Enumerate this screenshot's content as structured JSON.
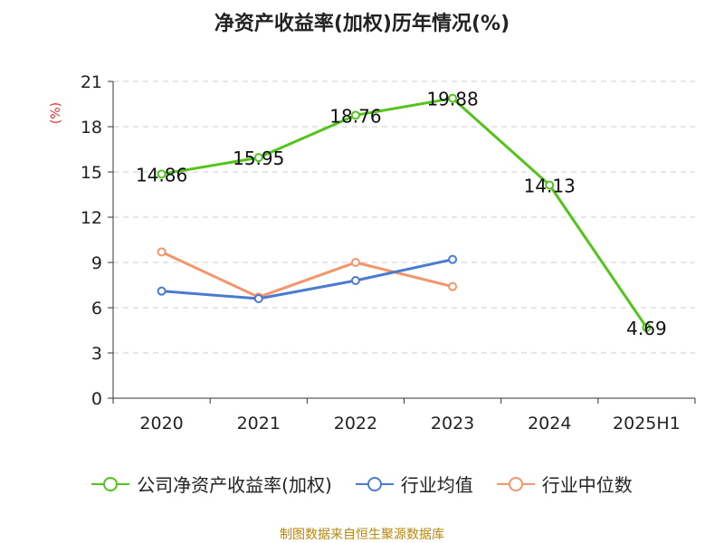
{
  "chart_data": {
    "type": "line",
    "title": "净资产收益率(加权)历年情况(%)",
    "ylabel": "(%)",
    "xlabel": "",
    "categories": [
      "2020",
      "2021",
      "2022",
      "2023",
      "2024",
      "2025H1"
    ],
    "ylim": [
      0,
      21
    ],
    "yticks": [
      0,
      3,
      6,
      9,
      12,
      15,
      18,
      21
    ],
    "grid": true,
    "legend_position": "bottom",
    "series": [
      {
        "name": "公司净资产收益率(加权)",
        "color": "#52c41a",
        "values": [
          14.86,
          15.95,
          18.76,
          19.88,
          14.13,
          4.69
        ],
        "labels": [
          "14.86",
          "15.95",
          "18.76",
          "19.88",
          "14.13",
          "4.69"
        ]
      },
      {
        "name": "行业均值",
        "color": "#4a7bd0",
        "values": [
          7.1,
          6.6,
          7.8,
          9.2,
          null,
          null
        ]
      },
      {
        "name": "行业中位数",
        "color": "#f5956a",
        "values": [
          9.7,
          6.7,
          9.0,
          7.4,
          null,
          null
        ]
      }
    ]
  },
  "source_text": "制图数据来自恒生聚源数据库"
}
